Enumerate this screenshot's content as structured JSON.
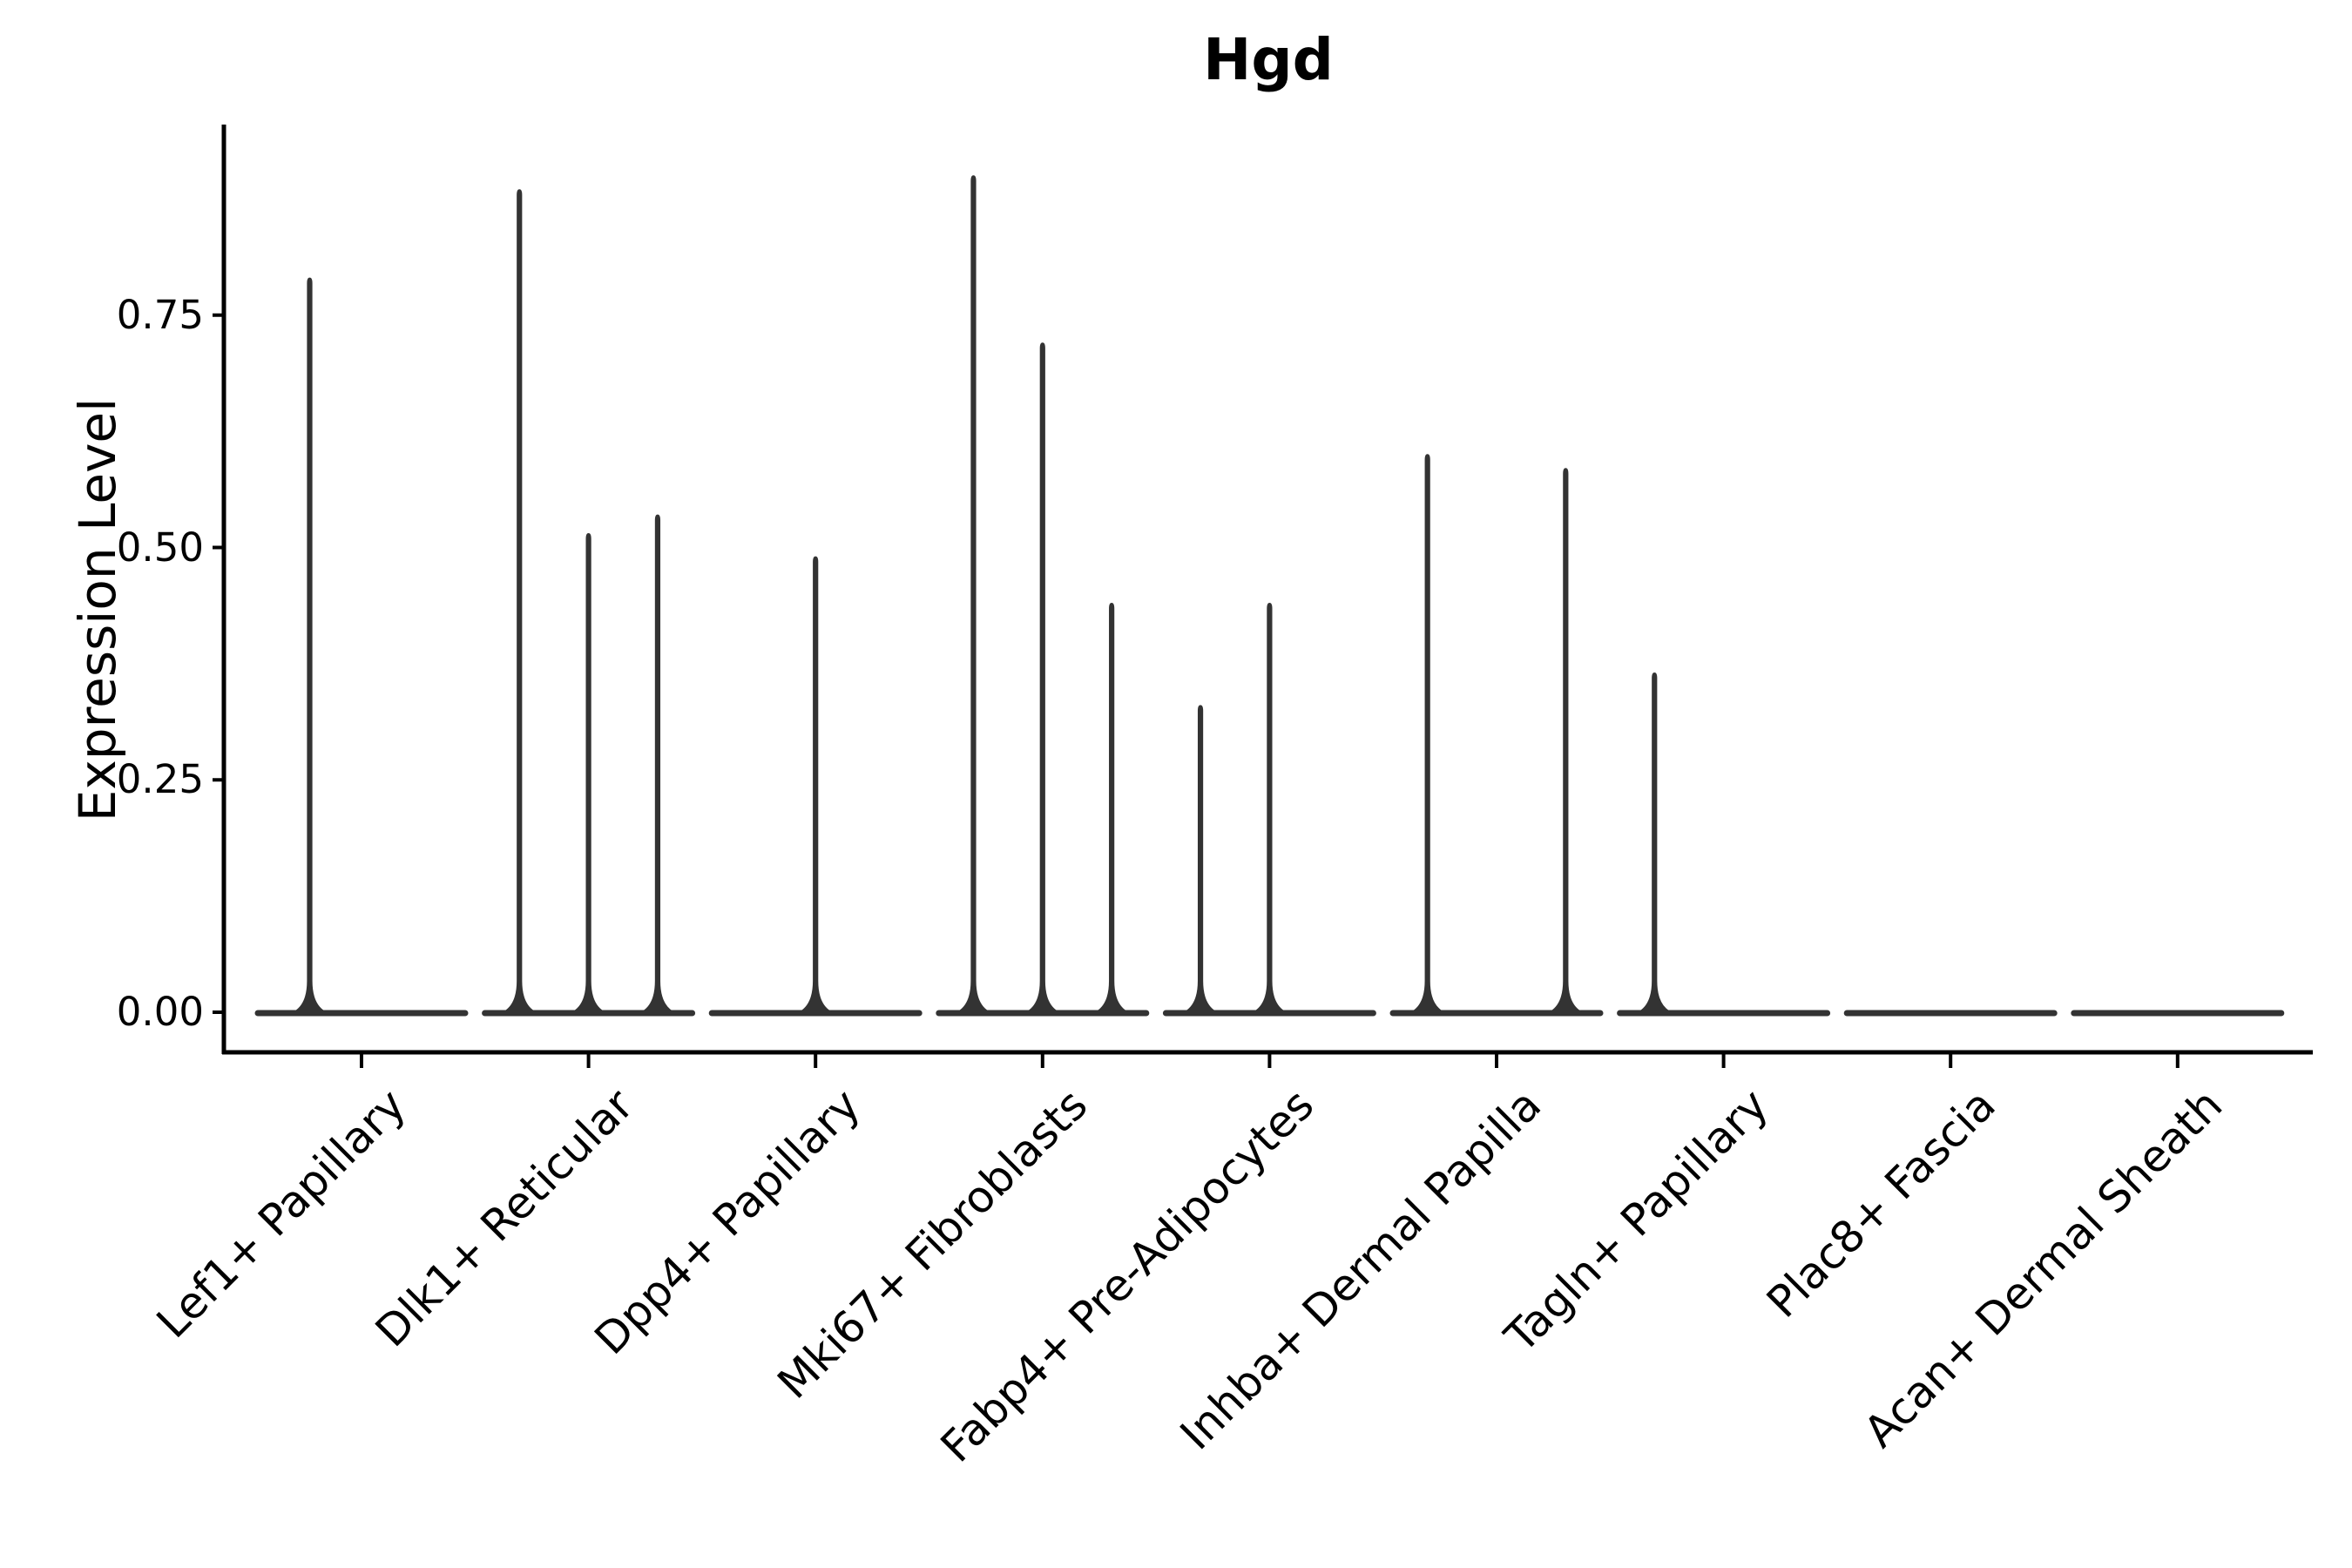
{
  "chart_data": {
    "type": "violin",
    "title": "Hgd",
    "ylabel": "Expression Level",
    "xlabel": "",
    "grid": false,
    "legend": null,
    "ylim": [
      -0.04,
      0.95
    ],
    "yticks": [
      {
        "value": 0.0,
        "label": "0.00"
      },
      {
        "value": 0.25,
        "label": "0.25"
      },
      {
        "value": 0.5,
        "label": "0.50"
      },
      {
        "value": 0.75,
        "label": "0.75"
      }
    ],
    "categories": [
      "Lef1+ Papillary",
      "Dlk1+ Reticular",
      "Dpp4+ Papillary",
      "Mki67+ Fibroblasts",
      "Fabp4+ Pre-Adipocytes",
      "Inhba+ Dermal Papilla",
      "Tagln+ Papillary",
      "Plac8+ Fascia",
      "Acan+ Dermal Sheath"
    ],
    "violins": [
      {
        "category": "Lef1+ Papillary",
        "groups": 2,
        "spikes": [
          {
            "slot": 0,
            "max": 0.79
          }
        ]
      },
      {
        "category": "Dlk1+ Reticular",
        "groups": 3,
        "spikes": [
          {
            "slot": 0,
            "max": 0.885
          },
          {
            "slot": 1,
            "max": 0.515
          },
          {
            "slot": 2,
            "max": 0.535
          }
        ]
      },
      {
        "category": "Dpp4+ Papillary",
        "groups": 1,
        "spikes": [
          {
            "slot": 0,
            "max": 0.49
          }
        ]
      },
      {
        "category": "Mki67+ Fibroblasts",
        "groups": 3,
        "spikes": [
          {
            "slot": 0,
            "max": 0.9
          },
          {
            "slot": 1,
            "max": 0.72
          },
          {
            "slot": 2,
            "max": 0.44
          }
        ]
      },
      {
        "category": "Fabp4+ Pre-Adipocytes",
        "groups": 3,
        "spikes": [
          {
            "slot": 0,
            "max": 0.33
          },
          {
            "slot": 1,
            "max": 0.44
          }
        ]
      },
      {
        "category": "Inhba+ Dermal Papilla",
        "groups": 3,
        "spikes": [
          {
            "slot": 0,
            "max": 0.6
          },
          {
            "slot": 2,
            "max": 0.585
          }
        ]
      },
      {
        "category": "Tagln+ Papillary",
        "groups": 3,
        "spikes": [
          {
            "slot": 0,
            "max": 0.365
          }
        ]
      },
      {
        "category": "Plac8+ Fascia",
        "groups": 1,
        "spikes": []
      },
      {
        "category": "Acan+ Dermal Sheath",
        "groups": 1,
        "spikes": []
      }
    ],
    "colors": {
      "violin": "#333333",
      "axis": "#000000",
      "text": "#000000",
      "background": "#ffffff"
    }
  }
}
